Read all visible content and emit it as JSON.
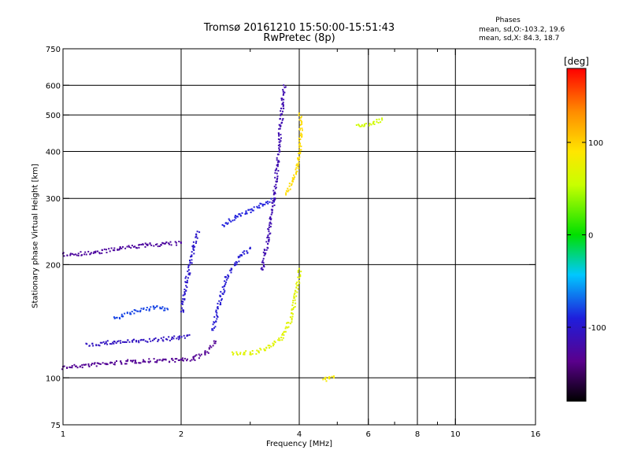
{
  "chart_data": {
    "type": "scatter",
    "title": "Tromsø 20161210 15:50:00-15:51:43",
    "subtitle": "RwPretec (8p)",
    "xlabel": "Frequency [MHz]",
    "ylabel": "Stationary phase Virtual Height [km]",
    "x_scale": "log2",
    "y_scale": "log",
    "xlim": [
      1,
      16
    ],
    "ylim": [
      75,
      750
    ],
    "x_ticks": [
      1,
      2,
      4,
      6,
      8,
      10,
      16
    ],
    "x_tick_labels": [
      "1",
      "2",
      "4",
      "6",
      "8",
      "10",
      "16"
    ],
    "x_minor_ticks": [
      3,
      5,
      7,
      9
    ],
    "y_ticks": [
      75,
      100,
      200,
      300,
      400,
      500,
      600,
      750
    ],
    "y_tick_labels": [
      "75",
      "100",
      "200",
      "300",
      "400",
      "500",
      "600",
      "750"
    ],
    "grid": true,
    "phase_stats": {
      "heading": "Phases",
      "line_o": "mean, sd,O:-103.2, 19.6",
      "line_x": "mean, sd,X:  84.3, 18.7"
    },
    "colorbar": {
      "unit": "[deg]",
      "ticks": [
        100,
        0,
        -100
      ],
      "tick_labels": [
        "100",
        "0",
        "-100"
      ],
      "range": [
        -180,
        180
      ],
      "colormap": "rainbow: black-purple-blue-cyan-green-yellow-orange-red"
    },
    "traces": [
      {
        "name": "",
        "phase": -130,
        "points": [
          [
            1.0,
            107
          ],
          [
            1.2,
            109
          ],
          [
            1.5,
            111
          ],
          [
            1.8,
            112
          ],
          [
            2.0,
            112
          ],
          [
            2.15,
            113
          ],
          [
            2.3,
            117
          ],
          [
            2.45,
            125
          ]
        ]
      },
      {
        "name": "",
        "phase": -125,
        "points": [
          [
            1.0,
            214
          ],
          [
            1.2,
            216
          ],
          [
            1.4,
            222
          ],
          [
            1.6,
            226
          ],
          [
            1.8,
            228
          ],
          [
            2.0,
            229
          ]
        ]
      },
      {
        "name": "",
        "phase": -105,
        "points": [
          [
            1.15,
            123
          ],
          [
            1.35,
            125
          ],
          [
            1.6,
            126
          ],
          [
            1.9,
            128
          ],
          [
            2.1,
            130
          ]
        ]
      },
      {
        "name": "",
        "phase": -80,
        "points": [
          [
            1.35,
            145
          ],
          [
            1.5,
            150
          ],
          [
            1.7,
            155
          ],
          [
            1.85,
            152
          ]
        ]
      },
      {
        "name": "",
        "phase": -100,
        "points": [
          [
            2.0,
            150
          ],
          [
            2.05,
            180
          ],
          [
            2.1,
            200
          ],
          [
            2.15,
            225
          ],
          [
            2.2,
            245
          ]
        ]
      },
      {
        "name": "",
        "phase": -95,
        "points": [
          [
            2.4,
            135
          ],
          [
            2.5,
            160
          ],
          [
            2.6,
            185
          ],
          [
            2.8,
            210
          ],
          [
            3.0,
            222
          ]
        ]
      },
      {
        "name": "",
        "phase": -90,
        "points": [
          [
            2.55,
            255
          ],
          [
            2.75,
            270
          ],
          [
            3.0,
            280
          ],
          [
            3.2,
            290
          ],
          [
            3.45,
            300
          ]
        ]
      },
      {
        "name": "",
        "phase": -115,
        "points": [
          [
            3.2,
            195
          ],
          [
            3.3,
            230
          ],
          [
            3.4,
            280
          ],
          [
            3.5,
            360
          ],
          [
            3.55,
            440
          ],
          [
            3.6,
            520
          ],
          [
            3.65,
            600
          ]
        ]
      },
      {
        "name": "",
        "phase": 70,
        "points": [
          [
            2.7,
            117
          ],
          [
            3.0,
            117
          ],
          [
            3.3,
            120
          ],
          [
            3.6,
            128
          ],
          [
            3.8,
            145
          ],
          [
            3.9,
            168
          ],
          [
            4.0,
            195
          ]
        ]
      },
      {
        "name": "",
        "phase": 95,
        "points": [
          [
            3.7,
            310
          ],
          [
            3.85,
            340
          ],
          [
            3.95,
            370
          ],
          [
            4.0,
            410
          ],
          [
            4.02,
            460
          ],
          [
            4.0,
            505
          ]
        ]
      },
      {
        "name": "",
        "phase": 85,
        "points": [
          [
            4.6,
            99
          ],
          [
            4.75,
            100
          ],
          [
            4.9,
            101
          ]
        ]
      },
      {
        "name": "",
        "phase": 60,
        "points": [
          [
            5.6,
            470
          ],
          [
            6.2,
            480
          ],
          [
            6.5,
            490
          ]
        ]
      }
    ]
  }
}
